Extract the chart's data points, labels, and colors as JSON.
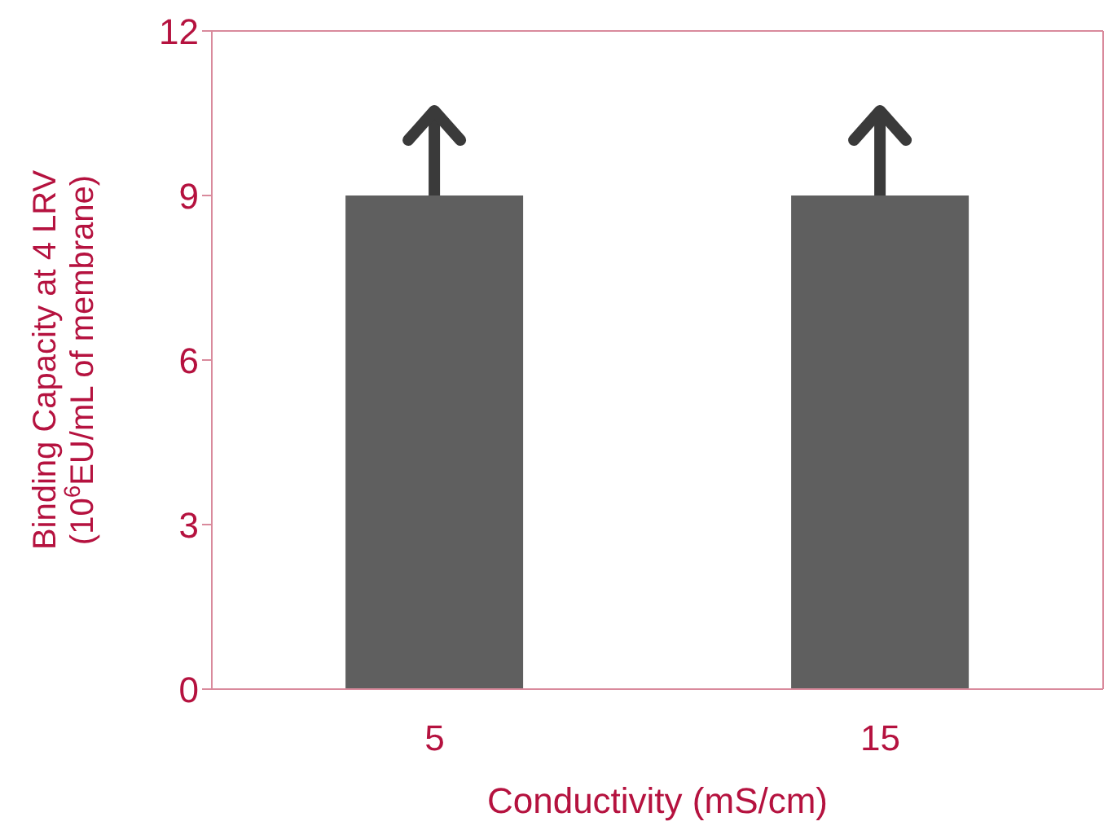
{
  "chart_data": {
    "type": "bar",
    "xlabel": "Conductivity (mS/cm)",
    "ylabel": "Binding Capacity at 4 LRV\n(10$^{6}$EU/mL of membrane)",
    "categories": [
      "5",
      "15"
    ],
    "values": [
      9,
      9
    ],
    "color": "#5f5f5f",
    "ylim": [
      0,
      12
    ],
    "yticks": [
      0,
      3,
      6,
      9,
      12
    ],
    "grid": false
  }
}
